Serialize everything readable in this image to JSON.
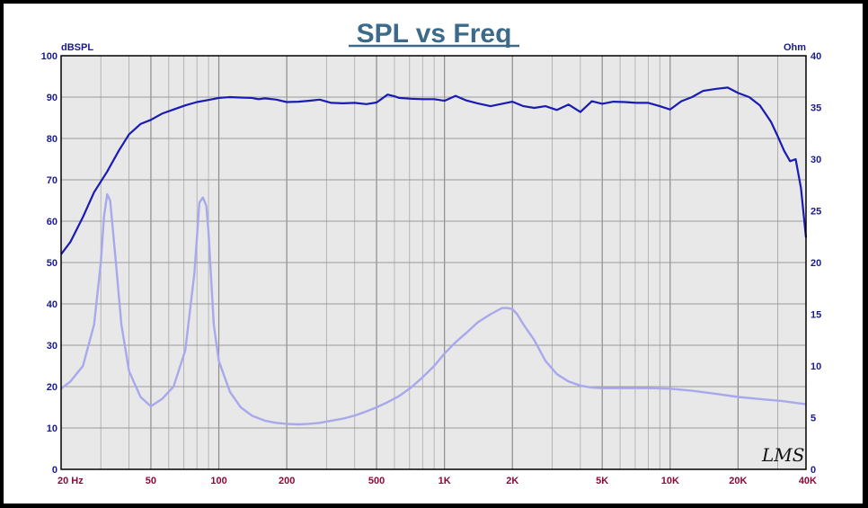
{
  "chart_data": {
    "type": "line",
    "title": "SPL vs Freq",
    "y_left_unit": "dBSPL",
    "y_right_unit": "Ohm",
    "logo": "LMS",
    "x_scale": "log",
    "xlim": [
      20,
      40000
    ],
    "ylim_left": [
      0,
      100
    ],
    "ylim_right": [
      0,
      40
    ],
    "y_left_ticks": [
      "0",
      "10",
      "20",
      "30",
      "40",
      "50",
      "60",
      "70",
      "80",
      "90",
      "100"
    ],
    "y_right_ticks": [
      "0",
      "5",
      "10",
      "15",
      "20",
      "25",
      "30",
      "35",
      "40"
    ],
    "x_ticks": [
      {
        "value": 20,
        "label": "20  Hz"
      },
      {
        "value": 50,
        "label": "50"
      },
      {
        "value": 100,
        "label": "100"
      },
      {
        "value": 200,
        "label": "200"
      },
      {
        "value": 500,
        "label": "500"
      },
      {
        "value": 1000,
        "label": "1K"
      },
      {
        "value": 2000,
        "label": "2K"
      },
      {
        "value": 5000,
        "label": "5K"
      },
      {
        "value": 10000,
        "label": "10K"
      },
      {
        "value": 20000,
        "label": "20K"
      },
      {
        "value": 40000,
        "label": "40K"
      }
    ],
    "grid": true,
    "colors": {
      "spl": "#1a1ab4",
      "impedance": "#a8a8ec",
      "background": "#e8e8e8",
      "title": "#3c6a8a"
    },
    "series": [
      {
        "axis": "left",
        "x": [
          20,
          22,
          25,
          28,
          32,
          36,
          40,
          45,
          50,
          56,
          63,
          71,
          80,
          90,
          100,
          112,
          125,
          140,
          150,
          160,
          180,
          200,
          225,
          250,
          280,
          315,
          355,
          400,
          450,
          500,
          560,
          600,
          630,
          710,
          800,
          900,
          1000,
          1120,
          1250,
          1400,
          1600,
          1800,
          2000,
          2240,
          2500,
          2800,
          3150,
          3550,
          4000,
          4500,
          5000,
          5600,
          6300,
          7100,
          8000,
          9000,
          10000,
          11200,
          12500,
          14000,
          16000,
          18000,
          20000,
          22400,
          25000,
          28000,
          30000,
          32000,
          34000,
          36000,
          38000,
          40000
        ],
        "values": [
          52,
          55,
          61,
          67,
          72,
          77,
          81,
          83.5,
          84.5,
          86,
          87,
          88,
          88.8,
          89.3,
          89.8,
          90,
          89.9,
          89.8,
          89.5,
          89.7,
          89.4,
          88.8,
          88.9,
          89.1,
          89.4,
          88.6,
          88.5,
          88.6,
          88.3,
          88.7,
          90.6,
          90.2,
          89.8,
          89.6,
          89.5,
          89.5,
          89.1,
          90.3,
          89.2,
          88.5,
          87.8,
          88.4,
          88.9,
          87.8,
          87.4,
          87.8,
          86.9,
          88.2,
          86.4,
          89,
          88.4,
          88.9,
          88.8,
          88.6,
          88.6,
          87.8,
          87,
          89,
          90,
          91.5,
          92,
          92.3,
          91,
          90,
          88,
          84,
          80.5,
          77,
          74.5,
          75,
          68,
          56
        ]
      },
      {
        "axis": "right",
        "x": [
          20,
          22,
          25,
          28,
          30,
          31,
          32,
          33,
          35,
          37,
          40,
          45,
          50,
          56,
          63,
          71,
          78,
          82,
          85,
          88,
          90,
          95,
          100,
          112,
          125,
          140,
          160,
          180,
          200,
          225,
          250,
          280,
          315,
          355,
          400,
          450,
          500,
          560,
          630,
          710,
          800,
          900,
          1000,
          1120,
          1250,
          1400,
          1600,
          1800,
          1900,
          2000,
          2100,
          2240,
          2500,
          2800,
          3150,
          3550,
          4000,
          4500,
          5000,
          6300,
          8000,
          10000,
          12500,
          16000,
          20000,
          25000,
          31500,
          40000
        ],
        "values": [
          7.8,
          8.5,
          10,
          14,
          20,
          24.5,
          26.6,
          26,
          20,
          14,
          9.5,
          7,
          6.1,
          6.8,
          8,
          11.5,
          19,
          25.8,
          26.3,
          25.5,
          23,
          14,
          10.5,
          7.5,
          6,
          5.2,
          4.7,
          4.5,
          4.4,
          4.35,
          4.4,
          4.5,
          4.7,
          4.9,
          5.2,
          5.6,
          6,
          6.5,
          7.1,
          7.9,
          8.9,
          10,
          11.2,
          12.3,
          13.2,
          14.2,
          15,
          15.6,
          15.6,
          15.5,
          15,
          14,
          12.5,
          10.5,
          9.2,
          8.5,
          8.1,
          7.9,
          7.85,
          7.85,
          7.85,
          7.8,
          7.6,
          7.3,
          7,
          6.8,
          6.6,
          6.3
        ]
      }
    ]
  }
}
